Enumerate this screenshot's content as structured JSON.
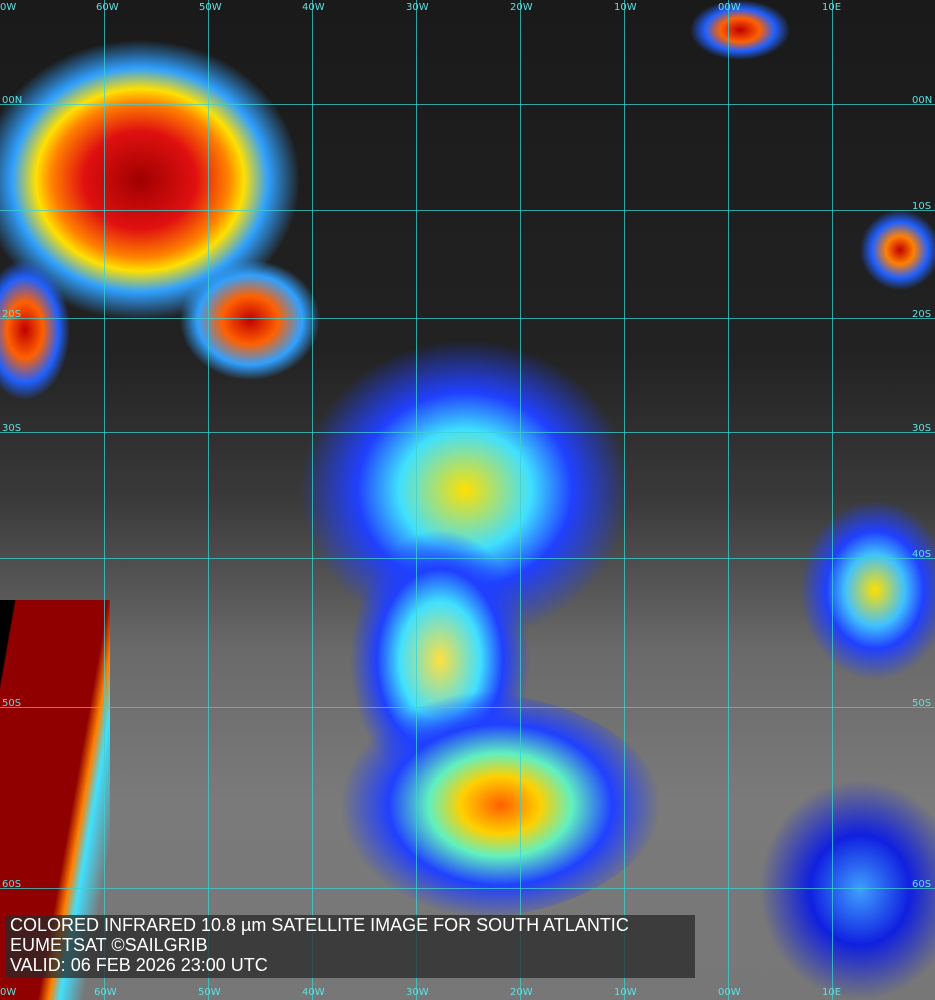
{
  "caption": {
    "line1": "COLORED INFRARED 10.8 µm SATELLITE IMAGE FOR SOUTH ATLANTIC",
    "line2": "EUMETSAT ©SAILGRIB",
    "line3": "VALID:  06 FEB 2026 23:00 UTC"
  },
  "longitude_labels": [
    "0W",
    "60W",
    "50W",
    "40W",
    "30W",
    "20W",
    "10W",
    "00W",
    "10E"
  ],
  "latitude_labels_left": [
    "00N",
    "20S",
    "30S",
    "50S",
    "60S"
  ],
  "latitude_labels_right": [
    "00N",
    "10S",
    "20S",
    "30S",
    "40S",
    "50S",
    "60S"
  ],
  "colors": {
    "grid": "#3fd0d0",
    "cold_top": "#b00000",
    "warm_top": "#2040ff",
    "text": "#ffffff"
  }
}
